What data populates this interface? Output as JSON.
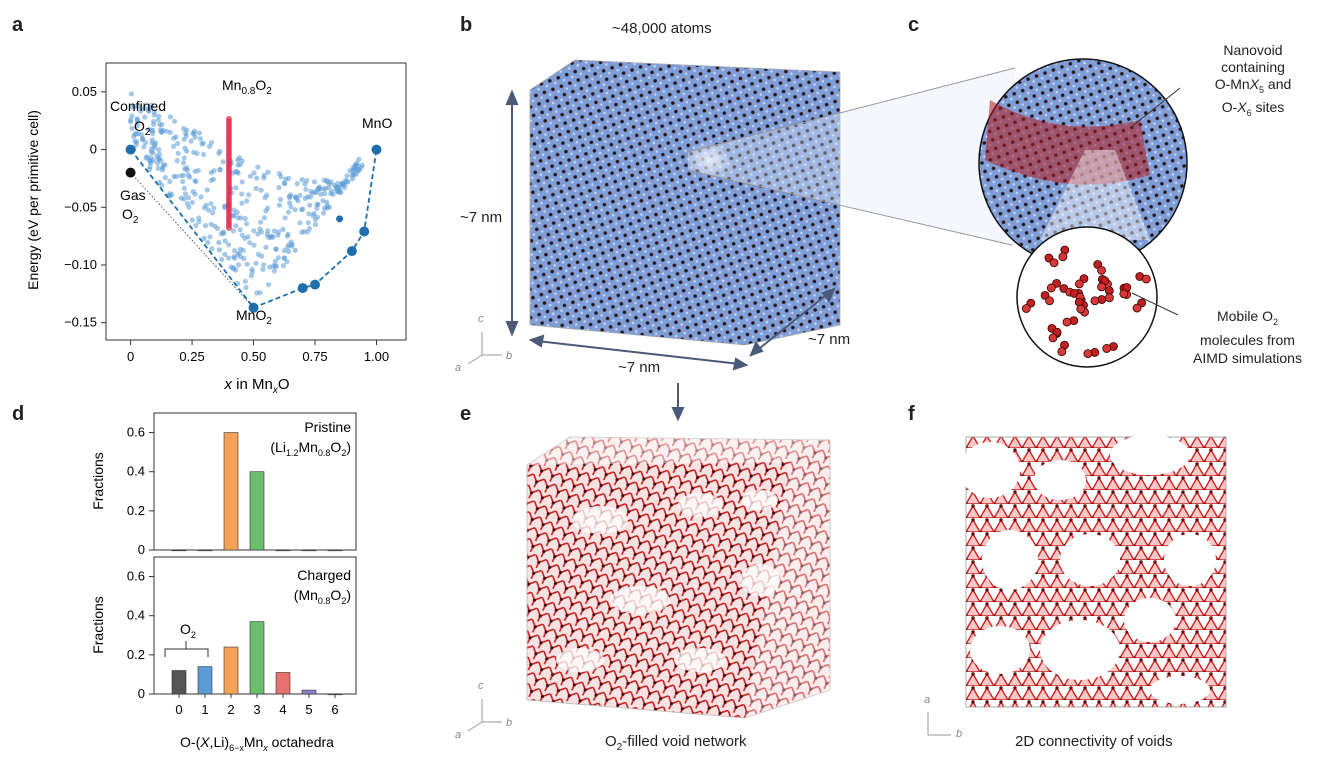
{
  "panels": {
    "a": "a",
    "b": "b",
    "c": "c",
    "d": "d",
    "e": "e",
    "f": "f"
  },
  "chart_data": [
    {
      "type": "scatter",
      "panel": "a",
      "xlabel_prefix": "x",
      "xlabel_mid": " in Mn",
      "xlabel_sub": "x",
      "xlabel_end": "O",
      "ylabel": "Energy (eV per primitive cell)",
      "xlim": [
        -0.1,
        1.12
      ],
      "ylim": [
        -0.165,
        0.075
      ],
      "xticks": [
        0,
        0.25,
        0.5,
        0.75,
        1.0
      ],
      "xtick_labels": [
        "0",
        "0.25",
        "0.50",
        "0.75",
        "1.00"
      ],
      "yticks": [
        0.05,
        0,
        -0.05,
        -0.1,
        -0.15
      ],
      "ytick_labels": [
        "0.05",
        "0",
        "−0.05",
        "−0.10",
        "−0.15"
      ],
      "hull": {
        "x": [
          0,
          0.5,
          0.7,
          0.75,
          0.9,
          0.95,
          1.0
        ],
        "y": [
          0,
          -0.137,
          -0.12,
          -0.117,
          -0.088,
          -0.071,
          0
        ]
      },
      "gas_point": {
        "x": 0,
        "y": -0.02
      },
      "extra_point": {
        "x": 0.85,
        "y": -0.06
      },
      "highlight_x": 0.4,
      "highlight_range": [
        -0.068,
        0.028
      ],
      "labels": {
        "mn08o2_main": "Mn",
        "mn08o2_sub": "0.8",
        "mn08o2_o": "O",
        "mn08o2_osub": "2",
        "confined": "Confined",
        "confined_o2": "O",
        "confined_o2_sub": "2",
        "gas": "Gas",
        "gas_o2": "O",
        "gas_o2_sub": "2",
        "mno": "MnO",
        "mno2": "MnO",
        "mno2_sub": "2"
      },
      "colors": {
        "hull": "#1f6fad",
        "points": "#5b9bd5",
        "highlight": "#e6284d",
        "gas": "#111111"
      }
    },
    {
      "type": "bar",
      "panel": "d-top",
      "categories": [
        "0",
        "1",
        "2",
        "3",
        "4",
        "5",
        "6"
      ],
      "values": [
        0.0,
        0.0,
        0.6,
        0.4,
        0.0,
        0.0,
        0.0
      ],
      "ylabel": "Fractions",
      "ylim": [
        0,
        0.7
      ],
      "yticks": [
        0,
        0.2,
        0.4,
        0.6
      ],
      "ytick_labels": [
        "0",
        "0.2",
        "0.4",
        "0.6"
      ],
      "legend_title": "Pristine",
      "legend_formula": {
        "a": "(Li",
        "a_sub": "1.2",
        "b": "Mn",
        "b_sub": "0.8",
        "c": "O",
        "c_sub": "2",
        "d": ")"
      }
    },
    {
      "type": "bar",
      "panel": "d-bottom",
      "categories": [
        "0",
        "1",
        "2",
        "3",
        "4",
        "5",
        "6"
      ],
      "values": [
        0.12,
        0.14,
        0.24,
        0.37,
        0.11,
        0.02,
        0.0
      ],
      "ylabel": "Fractions",
      "ylim": [
        0,
        0.7
      ],
      "yticks": [
        0,
        0.2,
        0.4,
        0.6
      ],
      "ytick_labels": [
        "0",
        "0.2",
        "0.4",
        "0.6"
      ],
      "legend_title": "Charged",
      "legend_formula": {
        "a": "(Mn",
        "a_sub": "0.8",
        "c": "O",
        "c_sub": "2",
        "d": ")"
      },
      "bracket_label": "O",
      "bracket_label_sub": "2",
      "xlabel_parts": {
        "a": "O-(",
        "b": "X",
        "c": ",Li)",
        "d": "6−x",
        "e": "Mn",
        "f": "x",
        "g": " octahedra"
      }
    }
  ],
  "bar_colors": [
    "#555555",
    "#5b9bd5",
    "#f5a35a",
    "#6bbf6b",
    "#e8706f",
    "#8f7fc7",
    "#999999"
  ],
  "panel_b": {
    "atoms": "~48,000 atoms",
    "dim_vertical": "~7 nm",
    "dim_bottom": "~7 nm",
    "dim_right": "~7 nm",
    "axis_c": "c",
    "axis_a": "a",
    "axis_b": "b"
  },
  "panel_c": {
    "nanovoid_line1": "Nanovoid",
    "nanovoid_line2": "containing",
    "nanovoid_line3a": "O-Mn",
    "nanovoid_line3x": "X",
    "nanovoid_line3sub": "5",
    "nanovoid_line3b": " and",
    "nanovoid_line4a": "O-",
    "nanovoid_line4x": "X",
    "nanovoid_line4sub": "6",
    "nanovoid_line4b": " sites",
    "mobile_line1": "Mobile O",
    "mobile_line1_sub": "2",
    "mobile_line2": "molecules from",
    "mobile_line3": "AIMD simulations"
  },
  "panel_e": {
    "caption_a": "O",
    "caption_sub": "2",
    "caption_b": "-filled void network",
    "axis_c": "c",
    "axis_a": "a",
    "axis_b": "b"
  },
  "panel_f": {
    "caption": "2D connectivity of voids",
    "axis_a": "a",
    "axis_b": "b"
  }
}
